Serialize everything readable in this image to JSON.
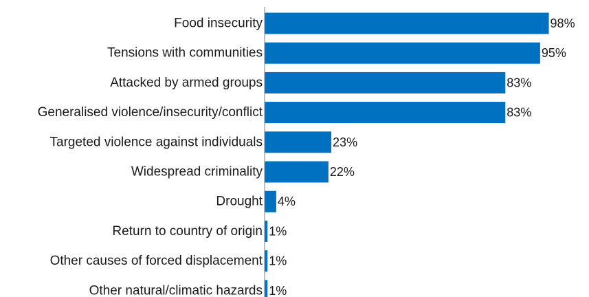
{
  "chart_data": {
    "type": "bar",
    "orientation": "horizontal",
    "title": "",
    "xlabel": "",
    "ylabel": "",
    "categories": [
      "Food insecurity",
      "Tensions with communities",
      "Attacked by armed groups",
      "Generalised violence/insecurity/conflict",
      "Targeted violence against individuals",
      "Widespread criminality",
      "Drought",
      "Return to country of origin",
      "Other causes of forced displacement",
      "Other natural/climatic hazards"
    ],
    "values": [
      98,
      95,
      83,
      83,
      23,
      22,
      4,
      1,
      1,
      1
    ],
    "value_labels": [
      "98%",
      "95%",
      "83%",
      "83%",
      "23%",
      "22%",
      "4%",
      "1%",
      "1%",
      "1%"
    ],
    "xlim": [
      0,
      100
    ],
    "grid": false,
    "legend": "none",
    "bar_color": "#0070C0",
    "axis_color": "#7f7f7f"
  }
}
